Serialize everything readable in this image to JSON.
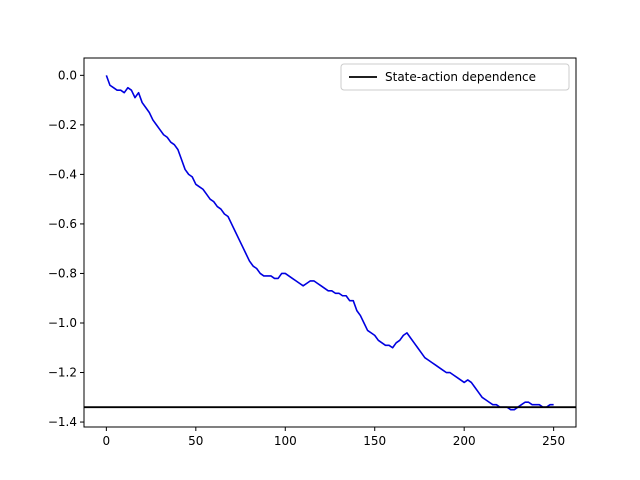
{
  "chart_data": {
    "type": "line",
    "xlim": [
      -12.5,
      262.5
    ],
    "ylim": [
      -1.42,
      0.07
    ],
    "xticks": [
      0,
      50,
      100,
      150,
      200,
      250
    ],
    "xtick_labels": [
      "0",
      "50",
      "100",
      "150",
      "200",
      "250"
    ],
    "yticks": [
      0.0,
      -0.2,
      -0.4,
      -0.6,
      -0.8,
      -1.0,
      -1.2,
      -1.4
    ],
    "ytick_labels": [
      "0.0",
      "−0.2",
      "−0.4",
      "−0.6",
      "−0.8",
      "−1.0",
      "−1.2",
      "−1.4"
    ],
    "grid": false,
    "legend_position": "top-right",
    "legend": [
      {
        "label": "State-action dependence",
        "color": "#000000"
      }
    ],
    "series": [
      {
        "color": "#0000e0",
        "points": [
          [
            0,
            0.0
          ],
          [
            2,
            -0.04
          ],
          [
            4,
            -0.05
          ],
          [
            6,
            -0.06
          ],
          [
            8,
            -0.06
          ],
          [
            10,
            -0.07
          ],
          [
            12,
            -0.05
          ],
          [
            14,
            -0.06
          ],
          [
            16,
            -0.09
          ],
          [
            18,
            -0.07
          ],
          [
            20,
            -0.11
          ],
          [
            22,
            -0.13
          ],
          [
            24,
            -0.15
          ],
          [
            26,
            -0.18
          ],
          [
            28,
            -0.2
          ],
          [
            30,
            -0.22
          ],
          [
            32,
            -0.24
          ],
          [
            34,
            -0.25
          ],
          [
            36,
            -0.27
          ],
          [
            38,
            -0.28
          ],
          [
            40,
            -0.3
          ],
          [
            42,
            -0.34
          ],
          [
            44,
            -0.38
          ],
          [
            46,
            -0.4
          ],
          [
            48,
            -0.41
          ],
          [
            50,
            -0.44
          ],
          [
            52,
            -0.45
          ],
          [
            54,
            -0.46
          ],
          [
            56,
            -0.48
          ],
          [
            58,
            -0.5
          ],
          [
            60,
            -0.51
          ],
          [
            62,
            -0.53
          ],
          [
            64,
            -0.54
          ],
          [
            66,
            -0.56
          ],
          [
            68,
            -0.57
          ],
          [
            70,
            -0.6
          ],
          [
            72,
            -0.63
          ],
          [
            74,
            -0.66
          ],
          [
            76,
            -0.69
          ],
          [
            78,
            -0.72
          ],
          [
            80,
            -0.75
          ],
          [
            82,
            -0.77
          ],
          [
            84,
            -0.78
          ],
          [
            86,
            -0.8
          ],
          [
            88,
            -0.81
          ],
          [
            90,
            -0.81
          ],
          [
            92,
            -0.81
          ],
          [
            94,
            -0.82
          ],
          [
            96,
            -0.82
          ],
          [
            98,
            -0.8
          ],
          [
            100,
            -0.8
          ],
          [
            102,
            -0.81
          ],
          [
            104,
            -0.82
          ],
          [
            106,
            -0.83
          ],
          [
            108,
            -0.84
          ],
          [
            110,
            -0.85
          ],
          [
            112,
            -0.84
          ],
          [
            114,
            -0.83
          ],
          [
            116,
            -0.83
          ],
          [
            118,
            -0.84
          ],
          [
            120,
            -0.85
          ],
          [
            122,
            -0.86
          ],
          [
            124,
            -0.87
          ],
          [
            126,
            -0.87
          ],
          [
            128,
            -0.88
          ],
          [
            130,
            -0.88
          ],
          [
            132,
            -0.89
          ],
          [
            134,
            -0.89
          ],
          [
            136,
            -0.91
          ],
          [
            138,
            -0.91
          ],
          [
            140,
            -0.95
          ],
          [
            142,
            -0.97
          ],
          [
            144,
            -1.0
          ],
          [
            146,
            -1.03
          ],
          [
            148,
            -1.04
          ],
          [
            150,
            -1.05
          ],
          [
            152,
            -1.07
          ],
          [
            154,
            -1.08
          ],
          [
            156,
            -1.09
          ],
          [
            158,
            -1.09
          ],
          [
            160,
            -1.1
          ],
          [
            162,
            -1.08
          ],
          [
            164,
            -1.07
          ],
          [
            166,
            -1.05
          ],
          [
            168,
            -1.04
          ],
          [
            170,
            -1.06
          ],
          [
            172,
            -1.08
          ],
          [
            174,
            -1.1
          ],
          [
            176,
            -1.12
          ],
          [
            178,
            -1.14
          ],
          [
            180,
            -1.15
          ],
          [
            182,
            -1.16
          ],
          [
            184,
            -1.17
          ],
          [
            186,
            -1.18
          ],
          [
            188,
            -1.19
          ],
          [
            190,
            -1.2
          ],
          [
            192,
            -1.2
          ],
          [
            194,
            -1.21
          ],
          [
            196,
            -1.22
          ],
          [
            198,
            -1.23
          ],
          [
            200,
            -1.24
          ],
          [
            202,
            -1.23
          ],
          [
            204,
            -1.24
          ],
          [
            206,
            -1.26
          ],
          [
            208,
            -1.28
          ],
          [
            210,
            -1.3
          ],
          [
            212,
            -1.31
          ],
          [
            214,
            -1.32
          ],
          [
            216,
            -1.33
          ],
          [
            218,
            -1.33
          ],
          [
            220,
            -1.34
          ],
          [
            222,
            -1.34
          ],
          [
            224,
            -1.34
          ],
          [
            226,
            -1.35
          ],
          [
            228,
            -1.35
          ],
          [
            230,
            -1.34
          ],
          [
            232,
            -1.33
          ],
          [
            234,
            -1.32
          ],
          [
            236,
            -1.32
          ],
          [
            238,
            -1.33
          ],
          [
            240,
            -1.33
          ],
          [
            242,
            -1.33
          ],
          [
            244,
            -1.34
          ],
          [
            246,
            -1.34
          ],
          [
            248,
            -1.33
          ],
          [
            250,
            -1.33
          ]
        ]
      }
    ],
    "reference_lines": [
      {
        "orientation": "horizontal",
        "y": -1.34,
        "color": "#000000",
        "label": "State-action dependence"
      }
    ]
  }
}
